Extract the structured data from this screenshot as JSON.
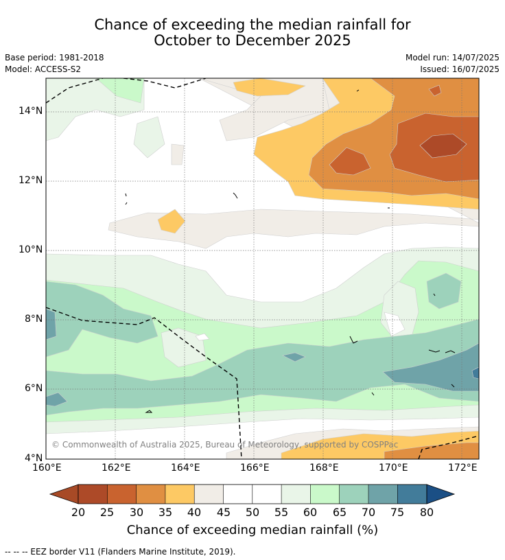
{
  "header": {
    "title_line1": "Chance of exceeding the median rainfall for",
    "title_line2": "October to December 2025",
    "base_period": "Base period: 1981-2018",
    "model": "Model: ACCESS-S2",
    "model_run": "Model run: 14/07/2025",
    "issued": "Issued: 16/07/2025"
  },
  "map": {
    "x_ticks": [
      "160°E",
      "162°E",
      "164°E",
      "166°E",
      "168°E",
      "170°E",
      "172°E"
    ],
    "y_ticks": [
      "14°N",
      "12°N",
      "10°N",
      "8°N",
      "6°N",
      "4°N"
    ],
    "copyright": "© Commonwealth of Australia 2025, Bureau of Meteorology, supported by COSPPac"
  },
  "colorbar": {
    "labels": [
      "20",
      "25",
      "30",
      "35",
      "40",
      "45",
      "50",
      "55",
      "60",
      "65",
      "70",
      "75",
      "80"
    ],
    "colors": [
      "#a84a26",
      "#ad4a28",
      "#c9632f",
      "#e08f42",
      "#fdc964",
      "#f1ede7",
      "#ffffff",
      "#ffffff",
      "#e9f5e8",
      "#caf9ca",
      "#9dd2bb",
      "#6fa3a8",
      "#427c9a",
      "#1b4f85"
    ],
    "title": "Chance of exceeding median rainfall (%)"
  },
  "footer": {
    "legend": "--  --  -- EEZ border V11 (Flanders Marine Institute, 2019)."
  }
}
